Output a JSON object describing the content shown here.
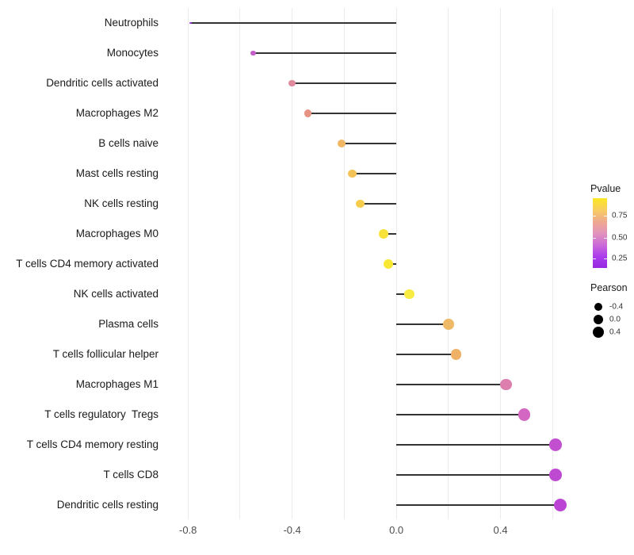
{
  "chart_data": {
    "type": "lollipop",
    "title": "",
    "xlabel": "",
    "ylabel": "",
    "legend_position": "right",
    "grid": "vertical light-gray, every 0.2",
    "baseline": 0.0,
    "xlim": [
      -0.895,
      0.663
    ],
    "x_ticks": [
      {
        "label": "-0.8",
        "value": -0.8
      },
      {
        "label": "-0.4",
        "value": -0.4
      },
      {
        "label": "0.0",
        "value": 0.0
      },
      {
        "label": "0.4",
        "value": 0.4
      }
    ],
    "grid_values": [
      -0.8,
      -0.6,
      -0.4,
      -0.2,
      0.0,
      0.2,
      0.4,
      0.6
    ],
    "series": [
      {
        "category": "Neutrophils",
        "pearson": -0.79,
        "color": "#9b2fe2"
      },
      {
        "category": "Monocytes",
        "pearson": -0.55,
        "color": "#c45fc9"
      },
      {
        "category": "Dendritic cells activated",
        "pearson": -0.4,
        "color": "#df8a9e"
      },
      {
        "category": "Macrophages M2",
        "pearson": -0.34,
        "color": "#e69384"
      },
      {
        "category": "B cells naive",
        "pearson": -0.21,
        "color": "#f1b763"
      },
      {
        "category": "Mast cells resting",
        "pearson": -0.17,
        "color": "#f4c357"
      },
      {
        "category": "NK cells resting",
        "pearson": -0.14,
        "color": "#f6cc4c"
      },
      {
        "category": "Macrophages M0",
        "pearson": -0.05,
        "color": "#f8e23a"
      },
      {
        "category": "T cells CD4 memory activated",
        "pearson": -0.03,
        "color": "#f9e833"
      },
      {
        "category": "NK cells activated",
        "pearson": 0.05,
        "color": "#f8ec42"
      },
      {
        "category": "Plasma cells",
        "pearson": 0.2,
        "color": "#eeba68"
      },
      {
        "category": "T cells follicular helper",
        "pearson": 0.23,
        "color": "#efb166"
      },
      {
        "category": "Macrophages M1",
        "pearson": 0.42,
        "color": "#dc7fae"
      },
      {
        "category": "T cells regulatory  Tregs",
        "pearson": 0.49,
        "color": "#d467c1"
      },
      {
        "category": "T cells CD4 memory resting",
        "pearson": 0.61,
        "color": "#c24fd0"
      },
      {
        "category": "T cells CD8",
        "pearson": 0.61,
        "color": "#bf4ad2"
      },
      {
        "category": "Dendritic cells resting",
        "pearson": 0.63,
        "color": "#bc44d4"
      }
    ],
    "legends": {
      "color": {
        "title": "Pvalue",
        "gradient_stops": [
          "#fbe723",
          "#f8cd60",
          "#efa98f",
          "#e394bc",
          "#cc6cd8",
          "#ab3deb",
          "#9429e0"
        ],
        "ticks": [
          {
            "label": "0.75",
            "pct": 25
          },
          {
            "label": "0.50",
            "pct": 57
          },
          {
            "label": "0.25",
            "pct": 86
          }
        ]
      },
      "size": {
        "title": "Pearson",
        "items": [
          {
            "label": "-0.4",
            "diameter": 10
          },
          {
            "label": "0.0",
            "diameter": 12
          },
          {
            "label": "0.4",
            "diameter": 14
          }
        ]
      }
    },
    "style_colors": {
      "background": "#ffffff",
      "stem": "#343434",
      "grid": "#ececec",
      "axis_text": "#4d4d4d",
      "category_text": "#1a1a1a"
    }
  }
}
